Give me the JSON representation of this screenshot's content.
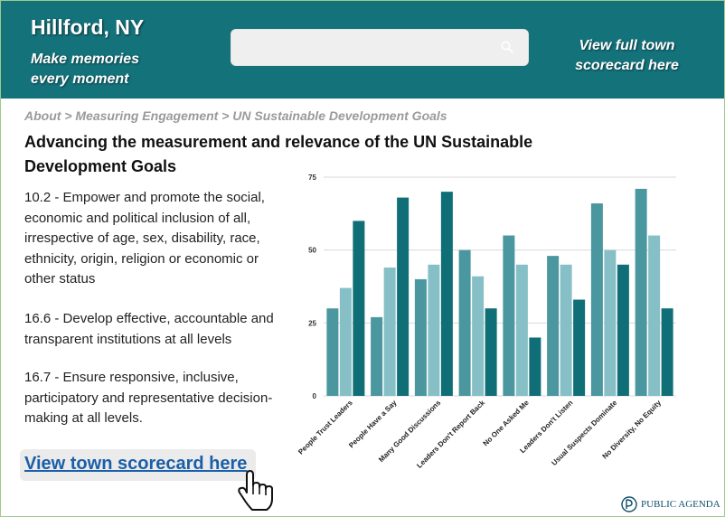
{
  "header": {
    "town_name": "Hillford, NY",
    "tagline": "Make memories every moment",
    "search_placeholder": "",
    "scorecard_link": "View full town scorecard here",
    "background_color": "#14727b"
  },
  "breadcrumb": {
    "items": [
      "About",
      "Measuring Engagement",
      "UN Sustainable Development Goals"
    ],
    "separator": " > "
  },
  "page_title": "Advancing the measurement and relevance of the UN Sustainable Development Goals",
  "goals": [
    "10.2 - Empower and promote the social, economic and political inclusion of all, irrespective of age, sex, disability, race, ethnicity, origin, religion or economic or other status",
    "16.6 - Develop effective, accountable and transparent institutions at all levels",
    "16.7 - Ensure responsive, inclusive, participatory and representative decision-making at all levels."
  ],
  "scorecard_button": {
    "label": "View town scorecard here"
  },
  "icons": {
    "search": "search-icon",
    "pointer": "hand-pointer-icon",
    "logo": "public-agenda-logo"
  },
  "footer": {
    "logo_text": "PUBLIC AGENDA"
  },
  "chart_data": {
    "type": "bar",
    "categories": [
      "People Trust Leaders",
      "People Have a Say",
      "Many Good Discussions",
      "Leaders Don't Report Back",
      "No One Asked Me",
      "Leaders Don't Listen",
      "Usual Suspects Dominate",
      "No Diversity, No Equity"
    ],
    "series": [
      {
        "values": [
          30,
          27,
          40,
          50,
          55,
          48,
          66,
          71
        ],
        "color": "#4a979f"
      },
      {
        "values": [
          37,
          44,
          45,
          41,
          45,
          45,
          50,
          55
        ],
        "color": "#86c0c6"
      },
      {
        "values": [
          60,
          68,
          70,
          30,
          20,
          33,
          45,
          30
        ],
        "color": "#0f6e76"
      }
    ],
    "yticks": [
      0,
      25,
      50,
      75
    ],
    "ylim": [
      0,
      75
    ],
    "grid": true,
    "title": "",
    "xlabel": "",
    "ylabel": ""
  }
}
